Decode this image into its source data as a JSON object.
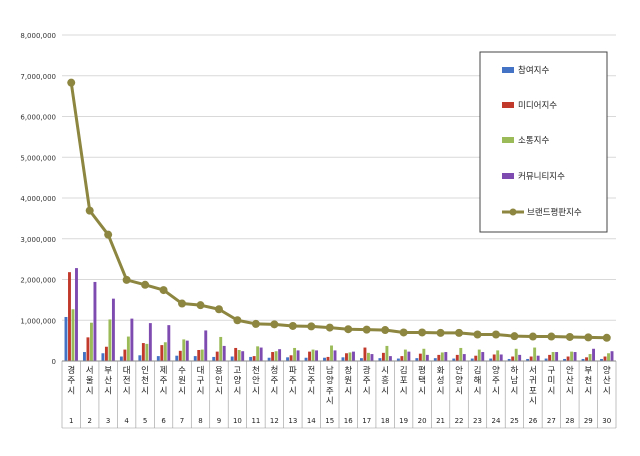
{
  "chart_data": {
    "type": "bar",
    "ylim": [
      0,
      8000000
    ],
    "y_ticks": [
      "0",
      "1,000,000",
      "2,000,000",
      "3,000,000",
      "4,000,000",
      "5,000,000",
      "6,000,000",
      "7,000,000",
      "8,000,000"
    ],
    "y_tick_values": [
      0,
      1000000,
      2000000,
      3000000,
      4000000,
      5000000,
      6000000,
      7000000,
      8000000
    ],
    "grid": true,
    "legend_position": "top-right",
    "categories": [
      "경주시",
      "서울시",
      "부산시",
      "대전시",
      "인천시",
      "제주시",
      "수원시",
      "대구시",
      "용인시",
      "고양시",
      "천안시",
      "청주시",
      "파주시",
      "전주시",
      "남양주시",
      "창원시",
      "광주시",
      "시흥시",
      "김포시",
      "평택시",
      "화성시",
      "안양시",
      "김해시",
      "양주시",
      "하남시",
      "서귀포시",
      "구미시",
      "안산시",
      "부천시",
      "양산시"
    ],
    "ranks": [
      "1",
      "2",
      "3",
      "4",
      "5",
      "6",
      "7",
      "8",
      "9",
      "10",
      "11",
      "12",
      "13",
      "14",
      "15",
      "16",
      "17",
      "18",
      "19",
      "20",
      "21",
      "22",
      "23",
      "24",
      "25",
      "26",
      "27",
      "28",
      "29",
      "30"
    ],
    "series": [
      {
        "name": "참여지수",
        "kind": "bar",
        "color": "#4472C4",
        "values": [
          1080000,
          220000,
          190000,
          110000,
          140000,
          120000,
          130000,
          120000,
          100000,
          110000,
          100000,
          80000,
          90000,
          80000,
          80000,
          90000,
          70000,
          70000,
          60000,
          70000,
          70000,
          60000,
          60000,
          60000,
          50000,
          50000,
          60000,
          50000,
          50000,
          50000
        ]
      },
      {
        "name": "미디어지수",
        "kind": "bar",
        "color": "#C0392B",
        "values": [
          2180000,
          580000,
          350000,
          280000,
          440000,
          390000,
          250000,
          270000,
          230000,
          320000,
          120000,
          220000,
          140000,
          230000,
          100000,
          190000,
          330000,
          200000,
          120000,
          180000,
          150000,
          150000,
          130000,
          160000,
          110000,
          110000,
          150000,
          110000,
          90000,
          110000
        ]
      },
      {
        "name": "소통지수",
        "kind": "bar",
        "color": "#9BBB59",
        "values": [
          1270000,
          940000,
          1020000,
          600000,
          420000,
          460000,
          530000,
          280000,
          590000,
          270000,
          360000,
          240000,
          320000,
          280000,
          380000,
          210000,
          200000,
          370000,
          280000,
          300000,
          210000,
          320000,
          280000,
          260000,
          300000,
          330000,
          220000,
          230000,
          170000,
          190000
        ]
      },
      {
        "name": "커뮤니티지수",
        "kind": "bar",
        "color": "#7E4BB0",
        "values": [
          2280000,
          1940000,
          1530000,
          1040000,
          930000,
          880000,
          500000,
          750000,
          370000,
          240000,
          330000,
          290000,
          260000,
          260000,
          260000,
          230000,
          170000,
          120000,
          230000,
          150000,
          220000,
          170000,
          220000,
          160000,
          150000,
          130000,
          220000,
          220000,
          300000,
          240000
        ]
      },
      {
        "name": "브랜드평판지수",
        "kind": "line",
        "color": "#8C8640",
        "values": [
          6830000,
          3690000,
          3100000,
          1990000,
          1870000,
          1740000,
          1410000,
          1370000,
          1270000,
          1000000,
          910000,
          900000,
          860000,
          850000,
          820000,
          780000,
          770000,
          760000,
          700000,
          700000,
          690000,
          690000,
          650000,
          650000,
          610000,
          600000,
          600000,
          590000,
          580000,
          570000
        ]
      }
    ]
  }
}
